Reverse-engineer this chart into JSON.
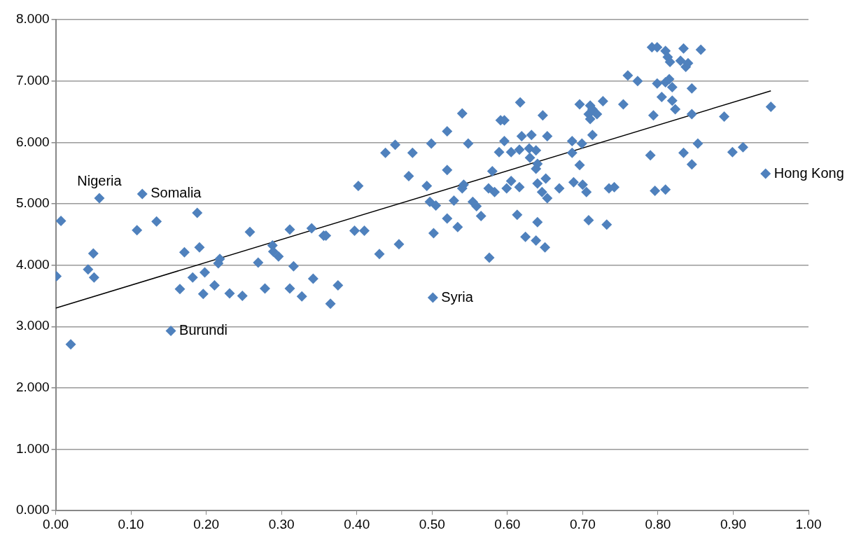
{
  "chart_data": {
    "type": "scatter",
    "xlim": [
      0,
      1
    ],
    "xticks": [
      {
        "value": 0,
        "label": "0.00"
      },
      {
        "value": 0.1,
        "label": "0.10"
      },
      {
        "value": 0.2,
        "label": "0.20"
      },
      {
        "value": 0.3,
        "label": "0.30"
      },
      {
        "value": 0.4,
        "label": "0.40"
      },
      {
        "value": 0.5,
        "label": "0.50"
      },
      {
        "value": 0.6,
        "label": "0.60"
      },
      {
        "value": 0.7,
        "label": "0.70"
      },
      {
        "value": 0.8,
        "label": "0.80"
      },
      {
        "value": 0.9,
        "label": "0.90"
      },
      {
        "value": 1,
        "label": "1.00"
      }
    ],
    "ylim": [
      0,
      8
    ],
    "yticks": [
      {
        "value": 0,
        "label": "0.000"
      },
      {
        "value": 1,
        "label": "1.000"
      },
      {
        "value": 2,
        "label": "2.000"
      },
      {
        "value": 3,
        "label": "3.000"
      },
      {
        "value": 4,
        "label": "4.000"
      },
      {
        "value": 5,
        "label": "5.000"
      },
      {
        "value": 6,
        "label": "6.000"
      },
      {
        "value": 7,
        "label": "7.000"
      },
      {
        "value": 8,
        "label": "8.000"
      }
    ],
    "grid": "y",
    "legend": false,
    "marker": "diamond",
    "series": [
      {
        "type": "scatter",
        "color": "#4f81bd",
        "x": [
          0.001,
          0.007,
          0.02,
          0.043,
          0.05,
          0.051,
          0.058,
          0.108,
          0.115,
          0.134,
          0.153,
          0.165,
          0.171,
          0.182,
          0.188,
          0.191,
          0.196,
          0.198,
          0.211,
          0.216,
          0.218,
          0.231,
          0.248,
          0.258,
          0.269,
          0.278,
          0.288,
          0.289,
          0.296,
          0.311,
          0.311,
          0.316,
          0.327,
          0.34,
          0.342,
          0.356,
          0.359,
          0.365,
          0.375,
          0.397,
          0.402,
          0.41,
          0.43,
          0.438,
          0.451,
          0.456,
          0.469,
          0.474,
          0.493,
          0.497,
          0.499,
          0.501,
          0.502,
          0.505,
          0.52,
          0.52,
          0.52,
          0.529,
          0.534,
          0.54,
          0.54,
          0.542,
          0.548,
          0.554,
          0.559,
          0.565,
          0.575,
          0.576,
          0.58,
          0.583,
          0.589,
          0.591,
          0.596,
          0.596,
          0.599,
          0.605,
          0.605,
          0.613,
          0.616,
          0.616,
          0.617,
          0.619,
          0.624,
          0.629,
          0.63,
          0.632,
          0.638,
          0.638,
          0.638,
          0.64,
          0.64,
          0.64,
          0.646,
          0.647,
          0.65,
          0.651,
          0.653,
          0.653,
          0.669,
          0.686,
          0.686,
          0.688,
          0.696,
          0.696,
          0.699,
          0.7,
          0.705,
          0.708,
          0.708,
          0.71,
          0.71,
          0.713,
          0.713,
          0.719,
          0.727,
          0.732,
          0.735,
          0.742,
          0.754,
          0.76,
          0.773,
          0.79,
          0.792,
          0.794,
          0.796,
          0.799,
          0.799,
          0.805,
          0.81,
          0.81,
          0.81,
          0.813,
          0.815,
          0.816,
          0.819,
          0.819,
          0.823,
          0.83,
          0.834,
          0.834,
          0.837,
          0.84,
          0.845,
          0.845,
          0.845,
          0.853,
          0.857,
          0.888,
          0.899,
          0.913,
          0.943,
          0.95
        ],
        "values": [
          3.82,
          4.72,
          2.71,
          3.93,
          4.19,
          3.8,
          5.09,
          4.57,
          5.16,
          4.71,
          2.93,
          3.61,
          4.21,
          3.8,
          4.85,
          4.29,
          3.53,
          3.88,
          3.67,
          4.03,
          4.1,
          3.54,
          3.5,
          4.54,
          4.04,
          3.62,
          4.32,
          4.22,
          4.14,
          4.58,
          3.62,
          3.98,
          3.49,
          4.6,
          3.78,
          4.48,
          4.48,
          3.37,
          3.67,
          4.56,
          5.29,
          4.56,
          4.18,
          5.83,
          5.96,
          4.34,
          5.45,
          5.83,
          5.29,
          5.03,
          5.98,
          3.47,
          4.52,
          4.97,
          6.18,
          5.55,
          4.76,
          5.05,
          4.62,
          6.47,
          5.25,
          5.31,
          5.98,
          5.03,
          4.96,
          4.8,
          5.25,
          4.12,
          5.53,
          5.19,
          5.84,
          6.36,
          6.36,
          6.02,
          5.25,
          5.84,
          5.37,
          4.82,
          5.88,
          5.27,
          6.65,
          6.1,
          4.46,
          5.9,
          5.75,
          6.12,
          5.87,
          5.57,
          4.4,
          5.65,
          5.33,
          4.7,
          5.19,
          6.44,
          4.29,
          5.41,
          6.1,
          5.09,
          5.25,
          6.02,
          5.83,
          5.35,
          6.62,
          5.63,
          5.98,
          5.31,
          5.19,
          6.46,
          4.73,
          6.6,
          6.38,
          6.54,
          6.12,
          6.46,
          6.67,
          4.66,
          5.25,
          5.27,
          6.62,
          7.09,
          7.0,
          5.79,
          7.55,
          6.44,
          5.21,
          7.55,
          6.96,
          6.74,
          7.49,
          6.98,
          5.23,
          7.39,
          7.03,
          7.31,
          6.9,
          6.68,
          6.54,
          7.33,
          7.53,
          5.83,
          7.23,
          7.29,
          6.88,
          6.46,
          5.64,
          5.98,
          7.51,
          6.42,
          5.84,
          5.92,
          5.49,
          6.58
        ]
      },
      {
        "type": "line",
        "color": "#000000",
        "marker": "none",
        "x": [
          0,
          0.95
        ],
        "values": [
          3.3,
          6.84
        ]
      }
    ],
    "annotations": [
      {
        "text": "Nigeria",
        "x": 0.058,
        "y": 5.09
      },
      {
        "text": "Somalia",
        "x": 0.115,
        "y": 5.16
      },
      {
        "text": "Burundi",
        "x": 0.153,
        "y": 2.93
      },
      {
        "text": "Syria",
        "x": 0.501,
        "y": 3.47
      },
      {
        "text": "Hong Kong",
        "x": 0.943,
        "y": 5.49
      }
    ]
  }
}
